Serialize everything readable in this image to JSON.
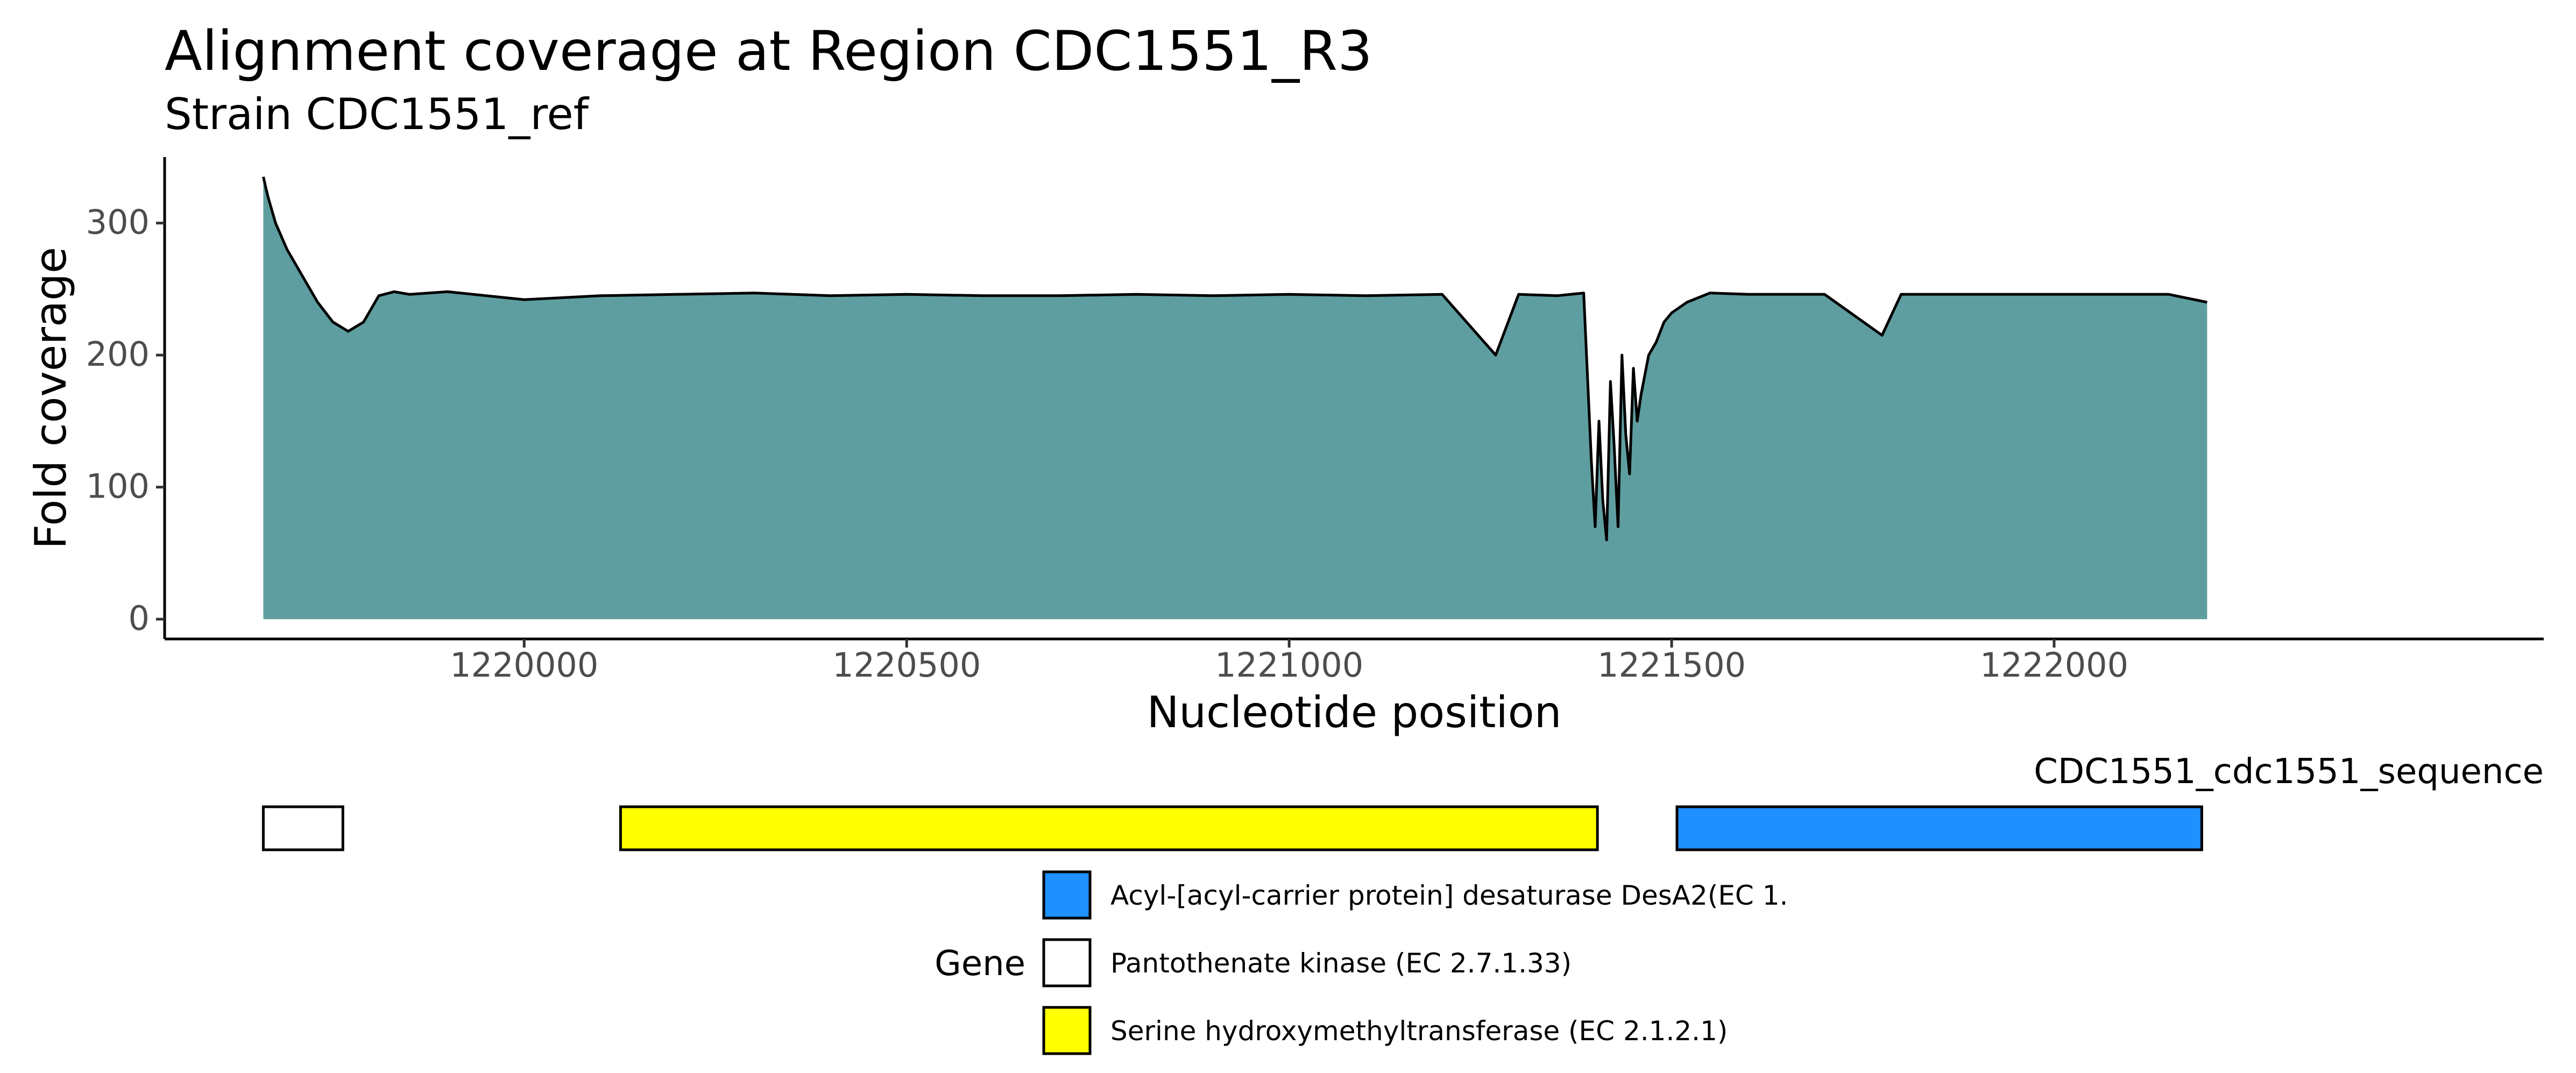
{
  "chart_data": {
    "type": "area",
    "title": "Alignment coverage at Region CDC1551_R3",
    "subtitle": "Strain CDC1551_ref",
    "xlabel": "Nucleotide position",
    "ylabel": "Fold coverage",
    "xlim": [
      1219530,
      1222640
    ],
    "ylim": [
      -15,
      350
    ],
    "x_ticks": [
      {
        "value": 1220000,
        "label": "1220000"
      },
      {
        "value": 1220500,
        "label": "1220500"
      },
      {
        "value": 1221000,
        "label": "1221000"
      },
      {
        "value": 1221500,
        "label": "1221500"
      },
      {
        "value": 1222000,
        "label": "1222000"
      }
    ],
    "y_ticks": [
      {
        "value": 0,
        "label": "0"
      },
      {
        "value": 100,
        "label": "100"
      },
      {
        "value": 200,
        "label": "200"
      },
      {
        "value": 300,
        "label": "300"
      }
    ],
    "grid": false,
    "fill_color": "#5f9ea0",
    "line_color": "#000000",
    "x": [
      1219659,
      1219665,
      1219675,
      1219690,
      1219710,
      1219730,
      1219750,
      1219770,
      1219790,
      1219810,
      1219830,
      1219850,
      1219900,
      1220000,
      1220100,
      1220200,
      1220300,
      1220400,
      1220500,
      1220600,
      1220700,
      1220800,
      1220900,
      1221000,
      1221100,
      1221200,
      1221270,
      1221300,
      1221350,
      1221385,
      1221395,
      1221400,
      1221405,
      1221410,
      1221415,
      1221420,
      1221425,
      1221430,
      1221435,
      1221440,
      1221445,
      1221450,
      1221455,
      1221460,
      1221470,
      1221480,
      1221490,
      1221500,
      1221520,
      1221550,
      1221600,
      1221700,
      1221775,
      1221800,
      1221900,
      1222000,
      1222100,
      1222150,
      1222200
    ],
    "values": [
      335,
      320,
      300,
      280,
      260,
      240,
      225,
      218,
      225,
      245,
      248,
      246,
      248,
      242,
      245,
      246,
      247,
      245,
      246,
      245,
      245,
      246,
      245,
      246,
      245,
      246,
      200,
      246,
      245,
      247,
      120,
      70,
      150,
      90,
      60,
      180,
      130,
      70,
      200,
      140,
      110,
      190,
      150,
      170,
      200,
      210,
      225,
      232,
      240,
      247,
      246,
      246,
      215,
      246,
      246,
      246,
      246,
      246,
      240
    ],
    "tracks": [
      {
        "label": "CDC1551_cdc1551_sequence",
        "genes": [
          {
            "start": 1219659,
            "end": 1219763,
            "gene": "Pantothenate kinase (EC 2.7.1.33)",
            "color": "#ffffff"
          },
          {
            "start": 1220126,
            "end": 1221403,
            "gene": "Serine hydroxymethyltransferase (EC 2.1.2.1)",
            "color": "#ffff00"
          },
          {
            "start": 1221507,
            "end": 1222193,
            "gene": "Acyl-[acyl-carrier protein] desaturase DesA2(EC 1.",
            "color": "#1e90ff"
          }
        ]
      }
    ],
    "legend": {
      "title": "Gene",
      "placement": "bottom",
      "entries": [
        {
          "label": "Acyl-[acyl-carrier protein] desaturase DesA2(EC 1.",
          "color": "#1e90ff"
        },
        {
          "label": "Pantothenate kinase (EC 2.7.1.33)",
          "color": "#ffffff"
        },
        {
          "label": "Serine hydroxymethyltransferase (EC 2.1.2.1)",
          "color": "#ffff00"
        }
      ]
    }
  }
}
